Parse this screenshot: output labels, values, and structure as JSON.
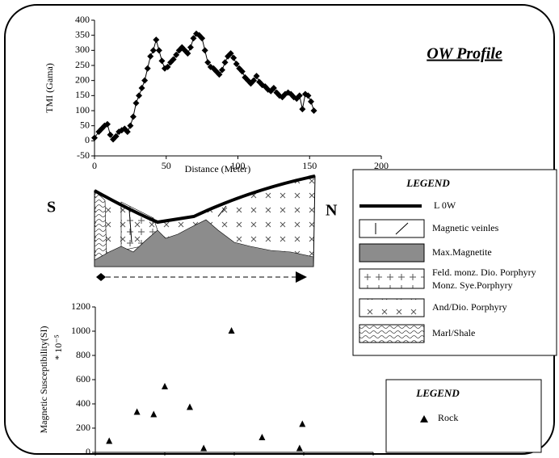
{
  "chart_data": [
    {
      "type": "line",
      "xlabel": "Distance (Meter)",
      "ylabel": "TMI (Gama)",
      "marker": "diamond",
      "color": "#000000",
      "x": [
        0,
        3,
        5,
        7,
        9,
        11,
        13,
        15,
        17,
        19,
        21,
        23,
        25,
        27,
        29,
        31,
        33,
        35,
        37,
        39,
        41,
        43,
        45,
        47,
        49,
        51,
        53,
        55,
        57,
        59,
        61,
        63,
        65,
        67,
        69,
        71,
        73,
        75,
        77,
        79,
        81,
        83,
        85,
        87,
        89,
        91,
        93,
        95,
        97,
        99,
        101,
        103,
        105,
        107,
        109,
        111,
        113,
        115,
        117,
        119,
        121,
        123,
        125,
        127,
        129,
        131,
        133,
        135,
        137,
        139,
        141,
        143,
        145,
        147,
        149,
        151,
        153
      ],
      "values": [
        10,
        30,
        40,
        50,
        55,
        20,
        5,
        15,
        30,
        35,
        40,
        30,
        50,
        80,
        125,
        150,
        175,
        200,
        240,
        280,
        300,
        335,
        300,
        265,
        240,
        245,
        260,
        270,
        285,
        300,
        310,
        300,
        290,
        310,
        340,
        355,
        350,
        340,
        300,
        260,
        245,
        240,
        230,
        220,
        235,
        260,
        280,
        290,
        275,
        255,
        240,
        230,
        210,
        200,
        190,
        200,
        215,
        195,
        185,
        180,
        170,
        165,
        175,
        160,
        150,
        145,
        155,
        160,
        155,
        145,
        140,
        150,
        105,
        155,
        150,
        130,
        100
      ],
      "xlim": [
        0,
        200
      ],
      "ylim": [
        -50,
        400
      ],
      "xticks": [
        0,
        50,
        100,
        150,
        200
      ],
      "yticks": [
        -50,
        0,
        50,
        100,
        150,
        200,
        250,
        300,
        350,
        400
      ]
    },
    {
      "type": "scatter",
      "ylabel": "Magnetic Susceptibility(SI)",
      "ylabel_unit": "* 10⁻⁵",
      "marker": "triangle",
      "color": "#000000",
      "x": [
        10,
        30,
        42,
        50,
        68,
        78,
        98,
        120,
        147,
        149
      ],
      "values": [
        90,
        330,
        310,
        540,
        370,
        30,
        1000,
        120,
        30,
        230
      ],
      "xlim": [
        0,
        200
      ],
      "ylim": [
        0,
        1200
      ],
      "xticks": [
        0,
        50,
        100,
        150,
        200
      ],
      "yticks": [
        0,
        200,
        400,
        600,
        800,
        1000,
        1200
      ]
    }
  ],
  "diagram": {
    "title": "OW Profile",
    "south": "S",
    "north": "N",
    "legend": {
      "title": "LEGEND",
      "items": [
        "L 0W",
        "Magnetic veinles",
        "Max.Magnetite",
        "Feld. monz. Dio. Porphyry",
        "Monz. Sye.Porphyry",
        "And/Dio. Porphyry",
        "Marl/Shale"
      ]
    },
    "legend2": {
      "title": "LEGEND",
      "items": [
        "Rock"
      ]
    }
  }
}
